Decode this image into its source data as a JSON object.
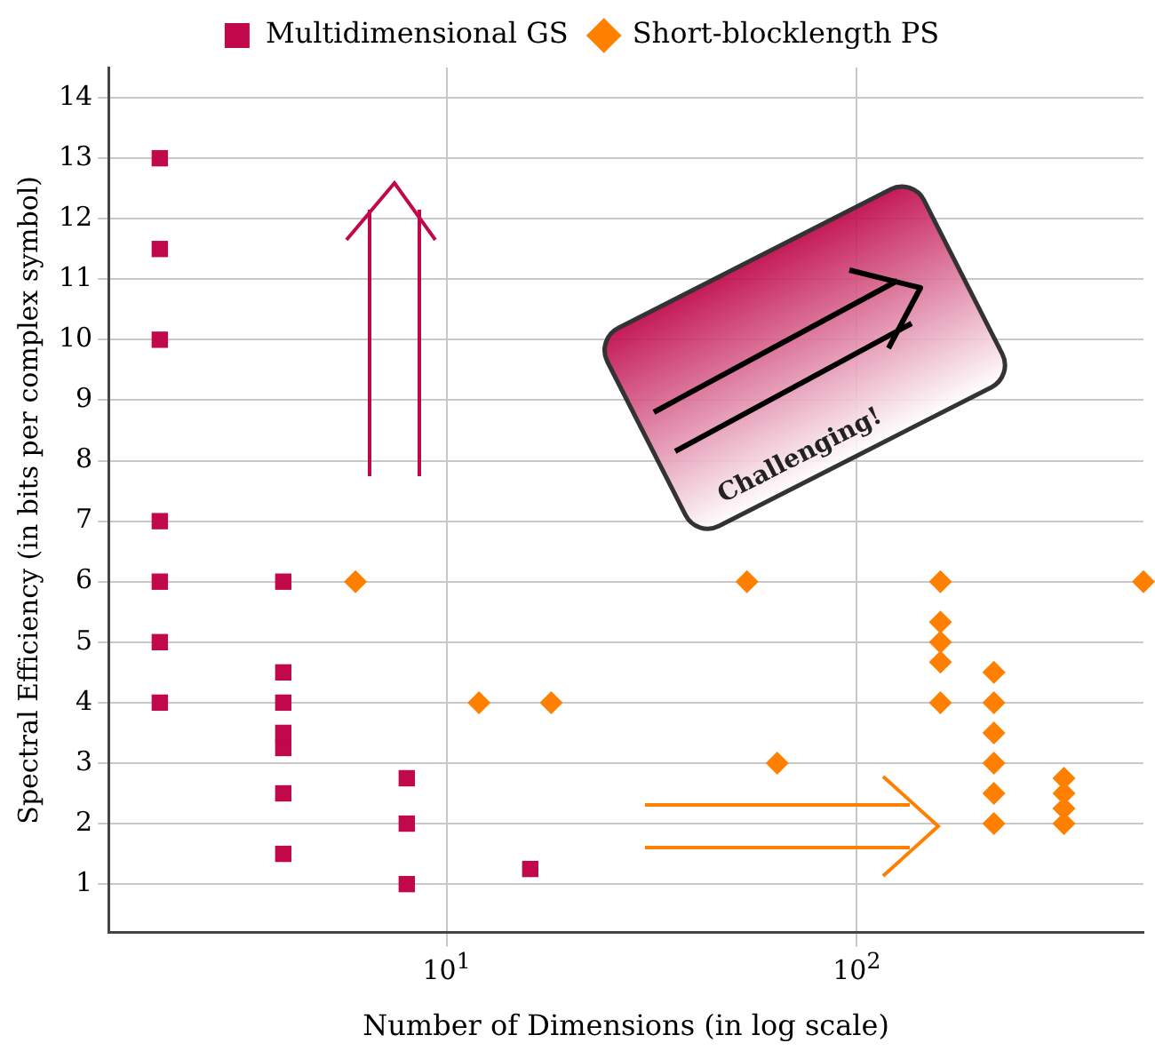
{
  "chart_data": {
    "type": "scatter",
    "xlabel": "Number of Dimensions (in log scale)",
    "ylabel": "Spectral Efficiency (in bits per complex symbol)",
    "log": "x",
    "xlim": [
      1.5,
      500
    ],
    "xticks": [
      {
        "value": 10,
        "label": "10$^{1}$"
      },
      {
        "value": 100,
        "label": "10$^{2}$"
      }
    ],
    "ylim": [
      0.2,
      14.5
    ],
    "yticks": [
      1,
      2,
      3,
      4,
      5,
      6,
      7,
      8,
      9,
      10,
      11,
      12,
      13,
      14
    ],
    "grid": true,
    "legend": "top",
    "annotations": [
      "Challenging!"
    ],
    "series": [
      {
        "name": "Multidimensional GS",
        "color": "#c0084a",
        "marker": "square",
        "x": [
          2,
          2,
          2,
          2,
          2,
          2,
          2,
          4,
          4,
          4,
          4,
          4,
          4,
          4,
          8,
          8,
          8,
          16
        ],
        "values": [
          13,
          11.5,
          10,
          7,
          6,
          5,
          4,
          6,
          4.5,
          4,
          3.5,
          3.25,
          2.5,
          1.5,
          2.75,
          2,
          1,
          1.25
        ]
      },
      {
        "name": "Short-blocklength PS",
        "color": "#ff8000",
        "marker": "diamond",
        "x": [
          6,
          12,
          18,
          54,
          64,
          160,
          160,
          160,
          160,
          160,
          216,
          216,
          216,
          216,
          216,
          216,
          320,
          320,
          320,
          320,
          500
        ],
        "values": [
          6,
          4,
          4,
          6,
          3,
          6,
          5.33,
          5,
          4.67,
          4,
          4.5,
          4,
          3.5,
          3,
          2.5,
          2,
          2.75,
          2.5,
          2.25,
          2,
          6
        ]
      }
    ]
  }
}
